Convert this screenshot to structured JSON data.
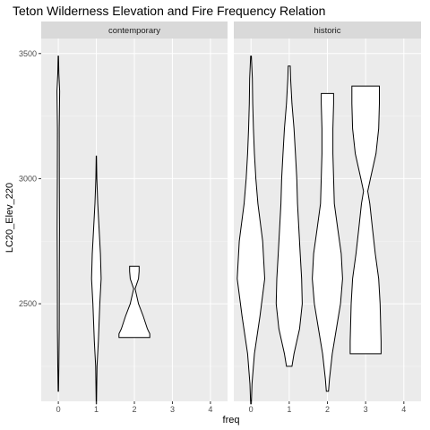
{
  "chart_data": {
    "type": "violin",
    "title": "Teton Wilderness Elevation and Fire Frequency Relation",
    "xlabel": "freq",
    "ylabel": "LC20_Elev_220",
    "x_ticks": [
      "0",
      "1",
      "2",
      "3",
      "4"
    ],
    "y_ticks": [
      2500,
      3000,
      3500
    ],
    "ylim": [
      2110,
      3560
    ],
    "xlim": [
      -0.45,
      4.45
    ],
    "grid": true,
    "facets": [
      {
        "label": "contemporary",
        "violins": [
          {
            "freq": 0,
            "min": 2150,
            "max": 3490,
            "profile": [
              [
                2150,
                0.005
              ],
              [
                2250,
                0.015
              ],
              [
                2400,
                0.025
              ],
              [
                2600,
                0.03
              ],
              [
                2800,
                0.035
              ],
              [
                3000,
                0.03
              ],
              [
                3200,
                0.025
              ],
              [
                3350,
                0.04
              ],
              [
                3420,
                0.015
              ],
              [
                3490,
                0.005
              ]
            ]
          },
          {
            "freq": 1,
            "min": 2100,
            "max": 3090,
            "profile": [
              [
                2100,
                0.005
              ],
              [
                2250,
                0.02
              ],
              [
                2350,
                0.06
              ],
              [
                2500,
                0.1
              ],
              [
                2600,
                0.14
              ],
              [
                2700,
                0.12
              ],
              [
                2800,
                0.08
              ],
              [
                2900,
                0.04
              ],
              [
                3000,
                0.015
              ],
              [
                3090,
                0.005
              ]
            ]
          },
          {
            "freq": 2,
            "min": 2365,
            "max": 2650,
            "profile": [
              [
                2365,
                0.45
              ],
              [
                2380,
                0.45
              ],
              [
                2400,
                0.38
              ],
              [
                2450,
                0.26
              ],
              [
                2500,
                0.12
              ],
              [
                2560,
                0.02
              ],
              [
                2600,
                0.12
              ],
              [
                2630,
                0.14
              ],
              [
                2650,
                0.14
              ]
            ]
          }
        ]
      },
      {
        "label": "historic",
        "violins": [
          {
            "freq": 0,
            "min": 2100,
            "max": 3490,
            "profile": [
              [
                2100,
                0.01
              ],
              [
                2180,
                0.03
              ],
              [
                2300,
                0.1
              ],
              [
                2450,
                0.26
              ],
              [
                2600,
                0.4
              ],
              [
                2750,
                0.34
              ],
              [
                2900,
                0.2
              ],
              [
                3000,
                0.14
              ],
              [
                3100,
                0.1
              ],
              [
                3200,
                0.07
              ],
              [
                3300,
                0.05
              ],
              [
                3400,
                0.04
              ],
              [
                3490,
                0.01
              ]
            ]
          },
          {
            "freq": 1,
            "min": 2250,
            "max": 3450,
            "profile": [
              [
                2250,
                0.08
              ],
              [
                2300,
                0.14
              ],
              [
                2400,
                0.3
              ],
              [
                2500,
                0.38
              ],
              [
                2600,
                0.36
              ],
              [
                2700,
                0.32
              ],
              [
                2800,
                0.28
              ],
              [
                2900,
                0.24
              ],
              [
                3000,
                0.22
              ],
              [
                3100,
                0.18
              ],
              [
                3200,
                0.14
              ],
              [
                3300,
                0.08
              ],
              [
                3400,
                0.04
              ],
              [
                3450,
                0.03
              ]
            ]
          },
          {
            "freq": 2,
            "min": 2150,
            "max": 3340,
            "profile": [
              [
                2150,
                0.03
              ],
              [
                2200,
                0.06
              ],
              [
                2300,
                0.14
              ],
              [
                2400,
                0.26
              ],
              [
                2500,
                0.38
              ],
              [
                2600,
                0.44
              ],
              [
                2700,
                0.4
              ],
              [
                2800,
                0.3
              ],
              [
                2900,
                0.2
              ],
              [
                3000,
                0.18
              ],
              [
                3100,
                0.16
              ],
              [
                3200,
                0.16
              ],
              [
                3300,
                0.18
              ],
              [
                3340,
                0.18
              ]
            ]
          },
          {
            "freq": 3,
            "min": 2300,
            "max": 3370,
            "profile": [
              [
                2300,
                0.45
              ],
              [
                2350,
                0.45
              ],
              [
                2500,
                0.42
              ],
              [
                2600,
                0.38
              ],
              [
                2700,
                0.28
              ],
              [
                2800,
                0.2
              ],
              [
                2900,
                0.12
              ],
              [
                2950,
                0.06
              ],
              [
                3000,
                0.14
              ],
              [
                3100,
                0.3
              ],
              [
                3200,
                0.38
              ],
              [
                3300,
                0.4
              ],
              [
                3370,
                0.4
              ]
            ]
          }
        ]
      }
    ]
  }
}
